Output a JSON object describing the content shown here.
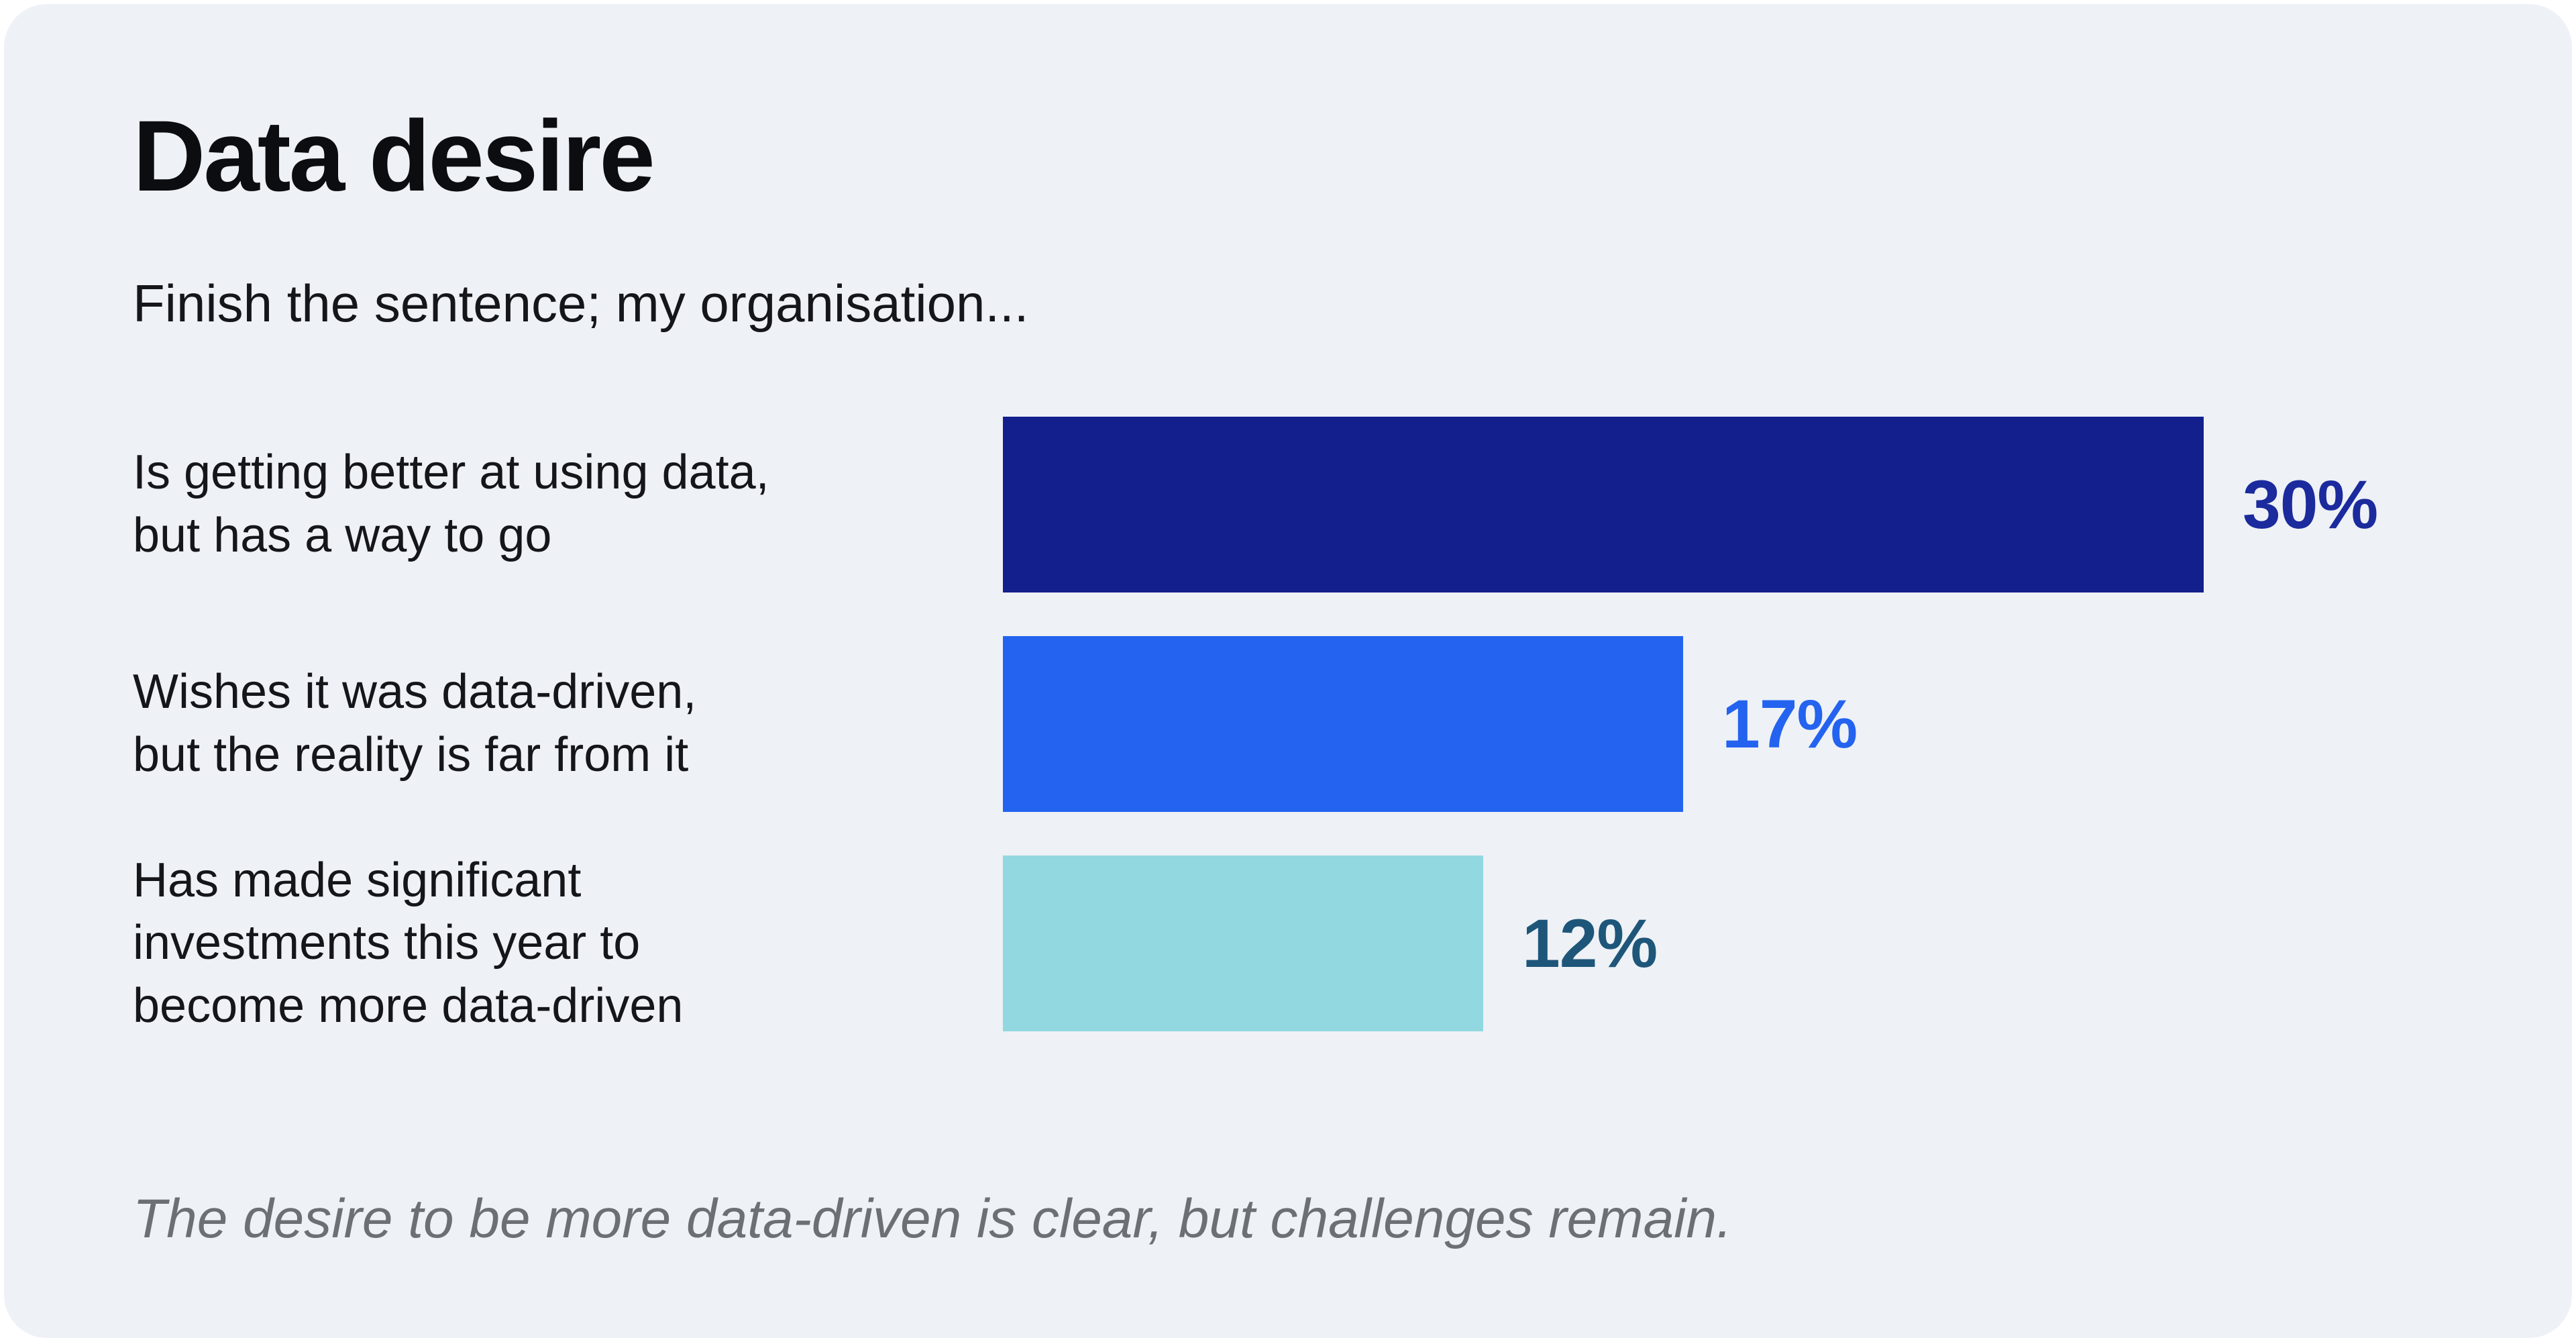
{
  "page": {
    "background": "#FFFFFF",
    "card_background": "#EEF1F6"
  },
  "header": {
    "title": "Data desire",
    "subtitle": "Finish the sentence; my organisation..."
  },
  "footer": {
    "note": "The desire to be more data-driven is clear, but challenges remain."
  },
  "chart_data": {
    "type": "bar",
    "orientation": "horizontal",
    "title": "Data desire",
    "subtitle": "Finish the sentence; my organisation...",
    "categories": [
      "Is getting better at using data, but has a way to go",
      "Wishes it was data-driven, but the reality is far from it",
      "Has made significant investments this year to become more data-driven"
    ],
    "values": [
      30,
      17,
      12
    ],
    "unit": "%",
    "xlim": [
      0,
      30
    ],
    "grid": false,
    "legend": false,
    "value_label_position": "end-of-bar",
    "annotation": "The desire to be more data-driven is clear, but challenges remain.",
    "rows": [
      {
        "label_lines": [
          "Is getting better at using data,",
          "but has a way to go"
        ],
        "value": 30,
        "display_value": "30%",
        "bar_color": "#131F8C",
        "value_color": "#1B2A9C"
      },
      {
        "label_lines": [
          "Wishes it was data-driven,",
          "but the reality is far from it"
        ],
        "value": 17,
        "display_value": "17%",
        "bar_color": "#2363EF",
        "value_color": "#2363EF"
      },
      {
        "label_lines": [
          "Has made significant",
          "investments this year to",
          "become more data-driven"
        ],
        "value": 12,
        "display_value": "12%",
        "bar_color": "#92D8E0",
        "value_color": "#1E567A"
      }
    ]
  }
}
